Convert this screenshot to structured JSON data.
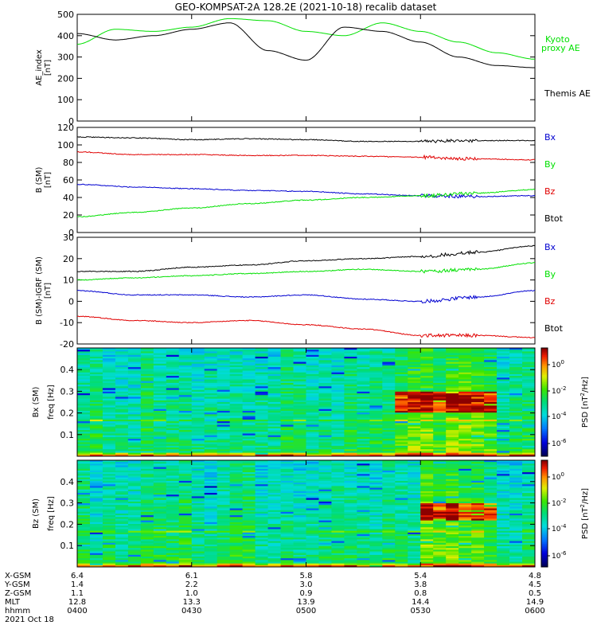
{
  "title": "GEO-KOMPSAT-2A 128.2E (2021-10-18) recalib dataset",
  "colors": {
    "black": "#000000",
    "red": "#e00000",
    "green": "#00e000",
    "blue": "#0000d0",
    "kyoto": "#00e000"
  },
  "time_axis": {
    "row_labels": [
      "X-GSM",
      "Y-GSM",
      "Z-GSM",
      "MLT",
      "hhmm",
      "2021 Oct 18"
    ],
    "ticks": [
      {
        "values": [
          "6.4",
          "1.4",
          "1.1",
          "12.8",
          "0400"
        ]
      },
      {
        "values": [
          "6.1",
          "2.2",
          "1.0",
          "13.3",
          "0430"
        ]
      },
      {
        "values": [
          "5.8",
          "3.0",
          "0.9",
          "13.9",
          "0500"
        ]
      },
      {
        "values": [
          "5.4",
          "3.8",
          "0.8",
          "14.4",
          "0530"
        ]
      },
      {
        "values": [
          "4.8",
          "4.5",
          "0.5",
          "14.9",
          "0600"
        ]
      }
    ]
  },
  "chart_data": [
    {
      "type": "line",
      "ylabel": "AE_index",
      "yunit": "[nT]",
      "ylim": [
        0,
        500
      ],
      "yticks": [
        "0",
        "100",
        "200",
        "300",
        "400",
        "500"
      ],
      "legend": [
        "Kyoto",
        "proxy AE",
        "Themis AE"
      ],
      "x": [
        "04:00",
        "04:10",
        "04:20",
        "04:30",
        "04:40",
        "04:50",
        "05:00",
        "05:10",
        "05:20",
        "05:30",
        "05:40",
        "05:50",
        "06:00"
      ],
      "series": [
        {
          "name": "Kyoto proxy AE",
          "color": "green",
          "values": [
            360,
            430,
            420,
            440,
            480,
            470,
            420,
            400,
            460,
            420,
            370,
            320,
            290
          ]
        },
        {
          "name": "Themis AE",
          "color": "black",
          "values": [
            410,
            380,
            400,
            430,
            460,
            330,
            285,
            440,
            420,
            370,
            300,
            260,
            250
          ]
        }
      ]
    },
    {
      "type": "line",
      "ylabel": "B (SM)",
      "yunit": "[nT]",
      "ylim": [
        0,
        120
      ],
      "yticks": [
        "0",
        "20",
        "40",
        "60",
        "80",
        "100",
        "120"
      ],
      "legend": [
        "Bx",
        "By",
        "Bz",
        "Btot"
      ],
      "x": [
        "04:00",
        "04:15",
        "04:30",
        "04:45",
        "05:00",
        "05:15",
        "05:30",
        "05:45",
        "06:00"
      ],
      "series": [
        {
          "name": "Btot",
          "color": "black",
          "values": [
            109,
            108,
            106,
            107,
            106,
            104,
            104,
            105,
            105
          ]
        },
        {
          "name": "By",
          "color": "red",
          "values": [
            92,
            89,
            89,
            88,
            88,
            87,
            86,
            84,
            83
          ]
        },
        {
          "name": "Bx",
          "color": "blue",
          "values": [
            55,
            52,
            50,
            48,
            47,
            44,
            42,
            41,
            42
          ]
        },
        {
          "name": "Bz",
          "color": "green",
          "values": [
            18,
            23,
            28,
            33,
            37,
            40,
            42,
            45,
            49
          ]
        }
      ]
    },
    {
      "type": "line",
      "ylabel": "B (SM)-IGRF (SM)",
      "yunit": "[nT]",
      "ylim": [
        -20,
        30
      ],
      "yticks": [
        "-20",
        "-10",
        "0",
        "10",
        "20",
        "30"
      ],
      "legend": [
        "Bx",
        "By",
        "Bz",
        "Btot"
      ],
      "x": [
        "04:00",
        "04:15",
        "04:30",
        "04:45",
        "05:00",
        "05:15",
        "05:30",
        "05:45",
        "06:00"
      ],
      "series": [
        {
          "name": "Btot",
          "color": "black",
          "values": [
            14,
            14,
            16,
            17,
            19,
            20,
            21,
            23,
            26
          ]
        },
        {
          "name": "By",
          "color": "green",
          "values": [
            10,
            11,
            12,
            13,
            14,
            15,
            14,
            15,
            18
          ]
        },
        {
          "name": "Bx",
          "color": "blue",
          "values": [
            5,
            3,
            3,
            2,
            3,
            1,
            0,
            2,
            5
          ]
        },
        {
          "name": "Bz",
          "color": "red",
          "values": [
            -7,
            -9,
            -10,
            -9,
            -11,
            -13,
            -16,
            -16,
            -17
          ]
        }
      ]
    },
    {
      "type": "heatmap",
      "ylabel": "Bx (SM)",
      "yunit": "freq [Hz]",
      "yticks": [
        "0.1",
        "0.2",
        "0.3",
        "0.4"
      ],
      "ylim": [
        0,
        0.5
      ],
      "colorbar_label": "PSD [nT^2/Hz]",
      "colorbar_ticks": [
        "10^0",
        "10^-2",
        "10^-4",
        "10^-6"
      ],
      "enhanced_region": {
        "time": [
          "05:25",
          "05:50"
        ],
        "freq": [
          0.2,
          0.3
        ]
      }
    },
    {
      "type": "heatmap",
      "ylabel": "Bz (SM)",
      "yunit": "freq [Hz]",
      "yticks": [
        "0.1",
        "0.2",
        "0.3",
        "0.4"
      ],
      "ylim": [
        0,
        0.5
      ],
      "colorbar_label": "PSD [nT^2/Hz]",
      "colorbar_ticks": [
        "10^0",
        "10^-2",
        "10^-4",
        "10^-6"
      ],
      "enhanced_region": {
        "time": [
          "05:30",
          "05:50"
        ],
        "freq": [
          0.22,
          0.3
        ]
      }
    }
  ]
}
